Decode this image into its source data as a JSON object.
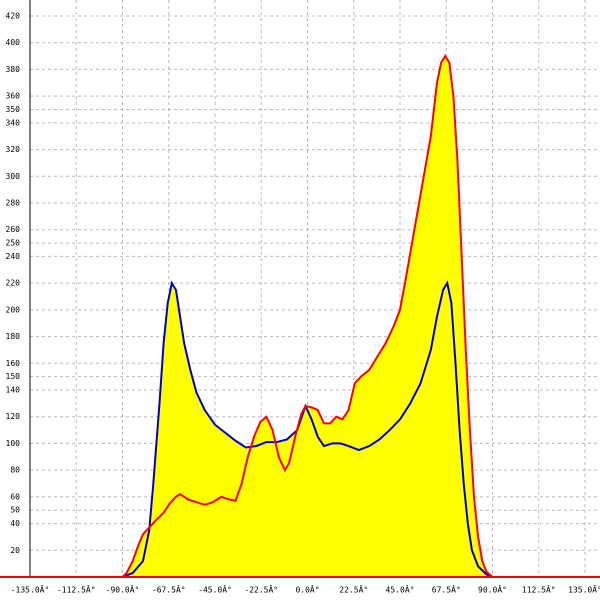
{
  "chart_data": {
    "type": "line",
    "xlim": [
      -135,
      135
    ],
    "ylim": [
      0,
      420
    ],
    "xticks": [
      {
        "value": -135,
        "label": "-135.0Â°"
      },
      {
        "value": -112.5,
        "label": "-112.5Â°"
      },
      {
        "value": -90,
        "label": "-90.0Â°"
      },
      {
        "value": -67.5,
        "label": "-67.5Â°"
      },
      {
        "value": -45,
        "label": "-45.0Â°"
      },
      {
        "value": -22.5,
        "label": "-22.5Â°"
      },
      {
        "value": 0,
        "label": "0.0Â°"
      },
      {
        "value": 22.5,
        "label": "22.5Â°"
      },
      {
        "value": 45,
        "label": "45.0Â°"
      },
      {
        "value": 67.5,
        "label": "67.5Â°"
      },
      {
        "value": 90,
        "label": "90.0Â°"
      },
      {
        "value": 112.5,
        "label": "112.5Â°"
      },
      {
        "value": 135,
        "label": "135.0Â°"
      }
    ],
    "yticks": [
      20,
      40,
      50,
      60,
      80,
      100,
      120,
      140,
      150,
      160,
      180,
      200,
      220,
      240,
      250,
      260,
      280,
      300,
      320,
      340,
      350,
      360,
      380,
      400,
      420
    ],
    "grid": true,
    "fill_color": "#ffff00",
    "series": [
      {
        "color": "#0000cc",
        "x": [
          -90,
          -85,
          -80,
          -77,
          -75,
          -72,
          -70,
          -68,
          -66,
          -64,
          -62,
          -60,
          -57,
          -54,
          -50,
          -45,
          -40,
          -35,
          -30,
          -25,
          -20,
          -15,
          -10,
          -5,
          -1,
          2,
          5,
          8,
          12,
          16,
          20,
          25,
          30,
          35,
          40,
          45,
          50,
          55,
          60,
          63,
          66,
          68,
          70,
          72,
          74,
          76,
          78,
          80,
          83,
          87,
          90
        ],
        "values": [
          0,
          3,
          12,
          35,
          70,
          130,
          175,
          205,
          220,
          215,
          195,
          175,
          155,
          138,
          125,
          114,
          108,
          102,
          97,
          98,
          101,
          101,
          103,
          110,
          128,
          118,
          105,
          98,
          100,
          100,
          98,
          95,
          98,
          103,
          110,
          118,
          130,
          145,
          170,
          195,
          215,
          220,
          205,
          160,
          110,
          70,
          40,
          20,
          8,
          2,
          0
        ]
      },
      {
        "color": "#ff0000",
        "x": [
          -90,
          -88,
          -85,
          -82,
          -80,
          -77,
          -74,
          -70,
          -67,
          -64,
          -62,
          -58,
          -54,
          -50,
          -46,
          -42,
          -38,
          -35,
          -32,
          -29,
          -26,
          -23,
          -20,
          -17,
          -14,
          -11,
          -9,
          -6,
          -3,
          -1,
          2,
          5,
          8,
          11,
          14,
          17,
          20,
          23,
          26,
          30,
          34,
          38,
          42,
          45,
          48,
          52,
          56,
          60,
          63,
          65,
          67,
          69,
          71,
          73,
          75,
          77,
          79,
          81,
          83,
          85,
          87,
          90
        ],
        "values": [
          0,
          3,
          12,
          25,
          32,
          37,
          42,
          48,
          55,
          60,
          62,
          58,
          56,
          54,
          56,
          60,
          58,
          57,
          70,
          90,
          105,
          116,
          120,
          110,
          90,
          80,
          85,
          105,
          122,
          128,
          127,
          125,
          115,
          115,
          120,
          118,
          125,
          145,
          150,
          155,
          165,
          175,
          188,
          200,
          225,
          260,
          295,
          330,
          370,
          385,
          390,
          385,
          360,
          310,
          240,
          170,
          110,
          60,
          30,
          12,
          4,
          0
        ]
      }
    ]
  }
}
